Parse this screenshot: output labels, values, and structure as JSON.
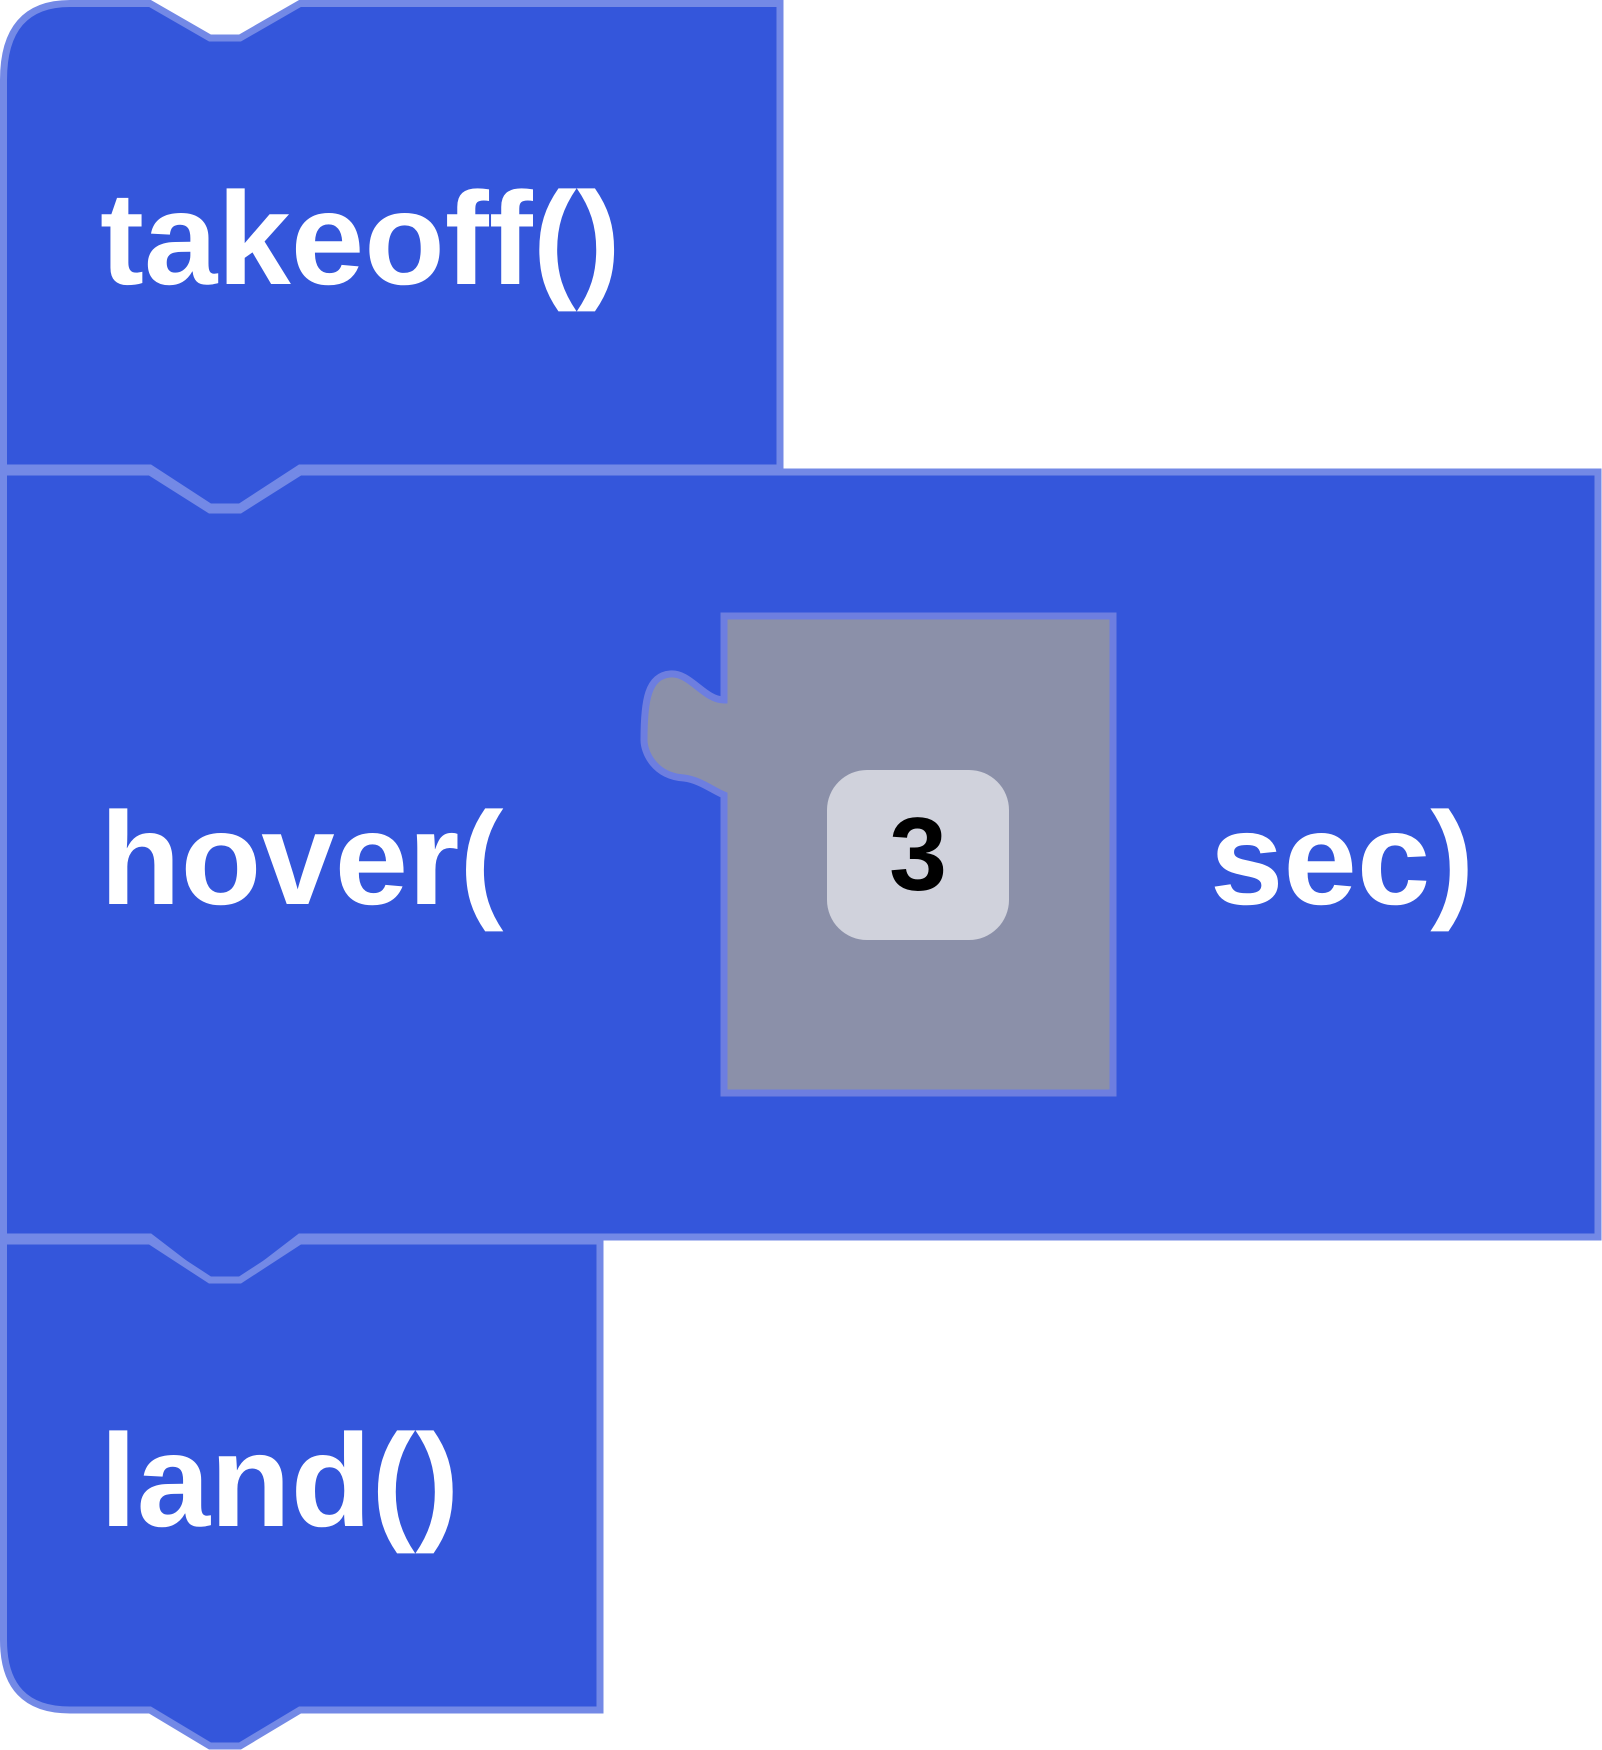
{
  "colors": {
    "block_fill": "#3456db",
    "block_stroke": "#7389e6",
    "shadow_block_fill": "#8b90a9",
    "shadow_block_stroke": "#6d7ee0",
    "field_fill": "#d0d2dc",
    "field_text": "#000000",
    "label_text": "#ffffff",
    "background": "#ffffff"
  },
  "blocks": [
    {
      "id": "takeoff",
      "label": "takeoff()"
    },
    {
      "id": "hover",
      "label_before": "hover(",
      "input": {
        "value": "3"
      },
      "label_after": "sec)"
    },
    {
      "id": "land",
      "label": "land()"
    }
  ]
}
